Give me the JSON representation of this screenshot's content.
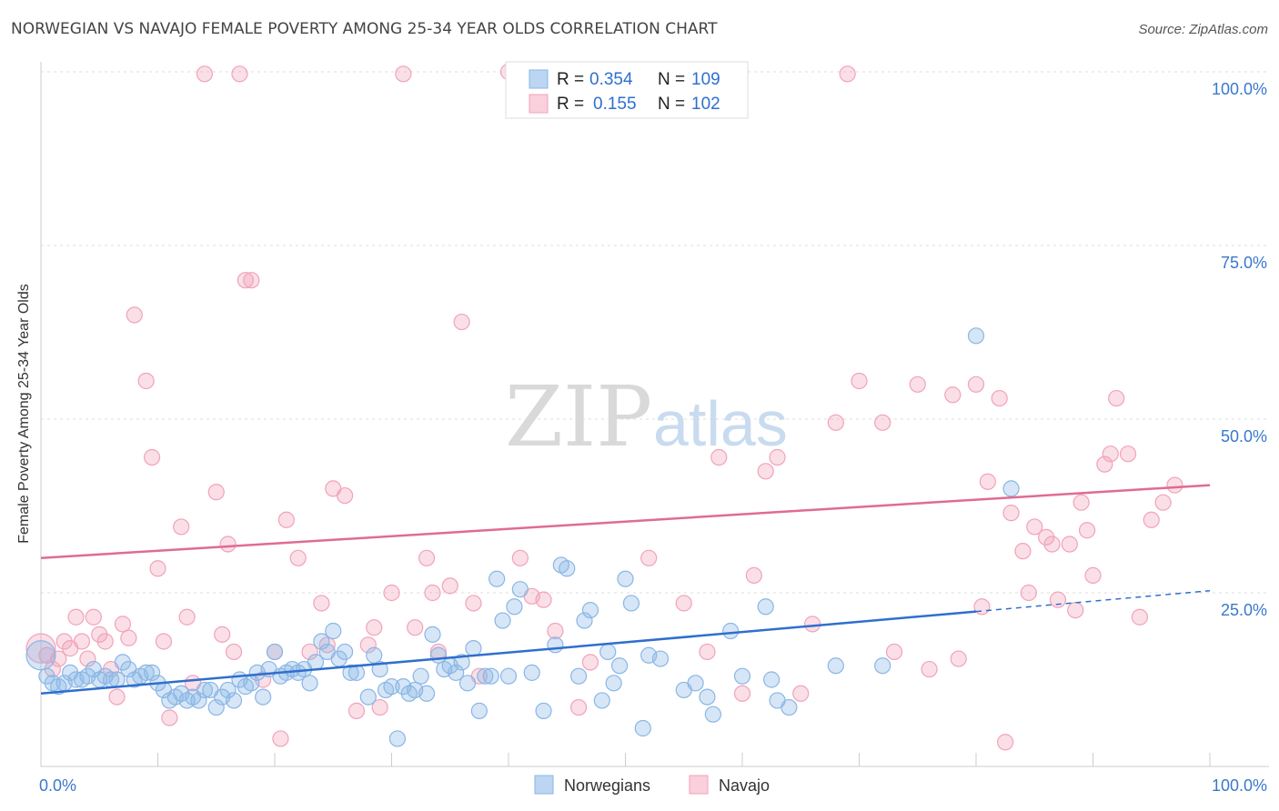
{
  "title": "NORWEGIAN VS NAVAJO FEMALE POVERTY AMONG 25-34 YEAR OLDS CORRELATION CHART",
  "source": "Source: ZipAtlas.com",
  "watermark": {
    "zip": "ZIP",
    "atlas": "atlas"
  },
  "chart_data": {
    "type": "scatter",
    "title": "NORWEGIAN VS NAVAJO FEMALE POVERTY AMONG 25-34 YEAR OLDS CORRELATION CHART",
    "xlabel": "",
    "ylabel": "Female Poverty Among 25-34 Year Olds",
    "xlim": [
      0,
      100
    ],
    "ylim": [
      0,
      100
    ],
    "x_tick_labels": [
      "0.0%",
      "100.0%"
    ],
    "y_ticks": [
      25,
      50,
      75,
      100
    ],
    "y_tick_labels": [
      "25.0%",
      "50.0%",
      "75.0%",
      "100.0%"
    ],
    "grid": true,
    "legend_position": "top-center",
    "stats": [
      {
        "r_label": "R =",
        "r_value": "0.354",
        "n_label": "N =",
        "n_value": "109"
      },
      {
        "r_label": "R =",
        "r_value": "0.155",
        "n_label": "N =",
        "n_value": "102"
      }
    ],
    "series": [
      {
        "name": "Norwegians",
        "color": "#8ab6e6",
        "line_color": "#2f6fcd",
        "trend": {
          "x0": 0,
          "y0": 10.5,
          "x1": 80,
          "y1": 22.3,
          "dash_to_x": 100,
          "dash_to_y": 25.3
        },
        "points": [
          [
            0,
            16
          ],
          [
            0.5,
            13
          ],
          [
            1,
            12
          ],
          [
            1.5,
            11.5
          ],
          [
            2,
            12
          ],
          [
            2.5,
            13.5
          ],
          [
            3,
            12.5
          ],
          [
            3.5,
            12.5
          ],
          [
            4,
            13
          ],
          [
            4.5,
            14
          ],
          [
            5,
            12.5
          ],
          [
            5.5,
            13
          ],
          [
            6,
            12.5
          ],
          [
            6.5,
            12.5
          ],
          [
            7,
            15
          ],
          [
            7.5,
            14
          ],
          [
            8,
            12.5
          ],
          [
            8.5,
            13
          ],
          [
            9,
            13.5
          ],
          [
            9.5,
            13.5
          ],
          [
            10,
            12
          ],
          [
            10.5,
            11
          ],
          [
            11,
            9.5
          ],
          [
            11.5,
            10
          ],
          [
            12,
            10.5
          ],
          [
            12.5,
            9.5
          ],
          [
            13,
            10
          ],
          [
            13.5,
            9.5
          ],
          [
            14,
            11
          ],
          [
            14.5,
            11
          ],
          [
            15,
            8.5
          ],
          [
            15.5,
            10
          ],
          [
            16,
            11
          ],
          [
            16.5,
            9.5
          ],
          [
            17,
            12.5
          ],
          [
            17.5,
            11.5
          ],
          [
            18,
            12
          ],
          [
            18.5,
            13.5
          ],
          [
            19,
            10
          ],
          [
            19.5,
            14
          ],
          [
            20,
            16.5
          ],
          [
            20.5,
            13
          ],
          [
            21,
            13.5
          ],
          [
            21.5,
            14
          ],
          [
            22,
            13.5
          ],
          [
            22.5,
            14
          ],
          [
            23,
            12
          ],
          [
            23.5,
            15
          ],
          [
            24,
            18
          ],
          [
            24.5,
            16.5
          ],
          [
            25,
            19.5
          ],
          [
            25.5,
            15.5
          ],
          [
            26,
            16.5
          ],
          [
            26.5,
            13.5
          ],
          [
            27,
            13.5
          ],
          [
            28,
            10
          ],
          [
            28.5,
            16
          ],
          [
            29,
            14
          ],
          [
            29.5,
            11
          ],
          [
            30,
            11.5
          ],
          [
            30.5,
            4
          ],
          [
            31,
            11.5
          ],
          [
            31.5,
            10.5
          ],
          [
            32,
            11
          ],
          [
            32.5,
            13
          ],
          [
            33,
            10.5
          ],
          [
            33.5,
            19
          ],
          [
            34,
            16
          ],
          [
            34.5,
            14
          ],
          [
            35,
            14.5
          ],
          [
            35.5,
            13.5
          ],
          [
            36,
            15
          ],
          [
            36.5,
            12
          ],
          [
            37,
            17
          ],
          [
            37.5,
            8
          ],
          [
            38,
            13
          ],
          [
            38.5,
            13
          ],
          [
            39,
            27
          ],
          [
            39.5,
            21
          ],
          [
            40,
            13
          ],
          [
            40.5,
            23
          ],
          [
            41,
            25.5
          ],
          [
            42,
            13.5
          ],
          [
            43,
            8
          ],
          [
            44,
            17.5
          ],
          [
            44.5,
            29
          ],
          [
            45,
            28.5
          ],
          [
            46,
            13
          ],
          [
            46.5,
            21
          ],
          [
            47,
            22.5
          ],
          [
            48,
            9.5
          ],
          [
            48.5,
            16.5
          ],
          [
            49,
            12
          ],
          [
            49.5,
            14.5
          ],
          [
            50,
            27
          ],
          [
            50.5,
            23.5
          ],
          [
            51.5,
            5.5
          ],
          [
            52,
            16
          ],
          [
            53,
            15.5
          ],
          [
            55,
            11
          ],
          [
            56,
            12
          ],
          [
            57,
            10
          ],
          [
            57.5,
            7.5
          ],
          [
            59,
            19.5
          ],
          [
            60,
            13
          ],
          [
            62,
            23
          ],
          [
            62.5,
            12.5
          ],
          [
            63,
            9.5
          ],
          [
            64,
            8.5
          ],
          [
            68,
            14.5
          ],
          [
            72,
            14.5
          ],
          [
            80,
            62
          ],
          [
            83,
            40
          ]
        ]
      },
      {
        "name": "Navajo",
        "color": "#f2a2bb",
        "line_color": "#e06b93",
        "trend": {
          "x0": 0,
          "y0": 30,
          "x1": 100,
          "y1": 40.5
        },
        "points": [
          [
            0,
            17
          ],
          [
            0.5,
            16
          ],
          [
            1,
            14
          ],
          [
            1.5,
            15.5
          ],
          [
            2,
            18
          ],
          [
            2.5,
            17
          ],
          [
            3,
            21.5
          ],
          [
            3.5,
            18
          ],
          [
            4,
            15.5
          ],
          [
            4.5,
            21.5
          ],
          [
            5,
            19
          ],
          [
            5.5,
            18
          ],
          [
            6,
            14
          ],
          [
            6.5,
            10
          ],
          [
            7,
            20.5
          ],
          [
            7.5,
            18.5
          ],
          [
            8,
            65
          ],
          [
            9,
            55.5
          ],
          [
            9.5,
            44.5
          ],
          [
            10,
            28.5
          ],
          [
            10.5,
            18
          ],
          [
            11,
            7
          ],
          [
            12,
            34.5
          ],
          [
            12.5,
            21.5
          ],
          [
            13,
            12
          ],
          [
            14,
            99.7
          ],
          [
            15,
            39.5
          ],
          [
            15.5,
            19
          ],
          [
            16,
            32
          ],
          [
            16.5,
            16.5
          ],
          [
            17,
            99.7
          ],
          [
            17.5,
            70
          ],
          [
            18,
            70
          ],
          [
            19,
            12.5
          ],
          [
            20,
            16.5
          ],
          [
            20.5,
            4
          ],
          [
            21,
            35.5
          ],
          [
            22,
            30
          ],
          [
            23,
            16.5
          ],
          [
            24,
            23.5
          ],
          [
            24.5,
            17.5
          ],
          [
            25,
            40
          ],
          [
            26,
            39
          ],
          [
            27,
            8
          ],
          [
            28,
            17.5
          ],
          [
            28.5,
            20
          ],
          [
            29,
            8.5
          ],
          [
            30,
            25
          ],
          [
            31,
            99.7
          ],
          [
            32,
            20
          ],
          [
            33,
            30
          ],
          [
            33.5,
            25
          ],
          [
            34,
            16.5
          ],
          [
            35,
            26
          ],
          [
            36,
            64
          ],
          [
            37,
            23.5
          ],
          [
            37.5,
            13
          ],
          [
            40,
            100
          ],
          [
            41,
            30
          ],
          [
            42,
            24.5
          ],
          [
            43,
            24
          ],
          [
            44,
            19.5
          ],
          [
            46,
            8.5
          ],
          [
            47,
            15
          ],
          [
            48,
            99.7
          ],
          [
            49,
            99.7
          ],
          [
            52,
            30
          ],
          [
            53,
            100
          ],
          [
            55,
            23.5
          ],
          [
            57,
            16.5
          ],
          [
            58,
            44.5
          ],
          [
            60,
            10.5
          ],
          [
            61,
            27.5
          ],
          [
            62,
            42.5
          ],
          [
            63,
            44.5
          ],
          [
            65,
            10.5
          ],
          [
            66,
            20.5
          ],
          [
            68,
            49.5
          ],
          [
            69,
            99.7
          ],
          [
            70,
            55.5
          ],
          [
            72,
            49.5
          ],
          [
            73,
            16.5
          ],
          [
            75,
            55
          ],
          [
            76,
            14
          ],
          [
            78,
            53.5
          ],
          [
            78.5,
            15.5
          ],
          [
            80,
            55
          ],
          [
            80.5,
            23
          ],
          [
            81,
            41
          ],
          [
            82,
            53
          ],
          [
            82.5,
            3.5
          ],
          [
            83,
            36.5
          ],
          [
            84,
            31
          ],
          [
            84.5,
            25
          ],
          [
            85,
            34.5
          ],
          [
            86,
            33
          ],
          [
            86.5,
            32
          ],
          [
            87,
            24
          ],
          [
            88,
            32
          ],
          [
            88.5,
            22.5
          ],
          [
            89,
            38
          ],
          [
            89.5,
            34
          ],
          [
            90,
            27.5
          ],
          [
            91,
            43.5
          ],
          [
            91.5,
            45
          ],
          [
            92,
            53
          ],
          [
            93,
            45
          ],
          [
            94,
            21.5
          ],
          [
            95,
            35.5
          ],
          [
            96,
            38
          ],
          [
            97,
            40.5
          ]
        ]
      }
    ]
  }
}
